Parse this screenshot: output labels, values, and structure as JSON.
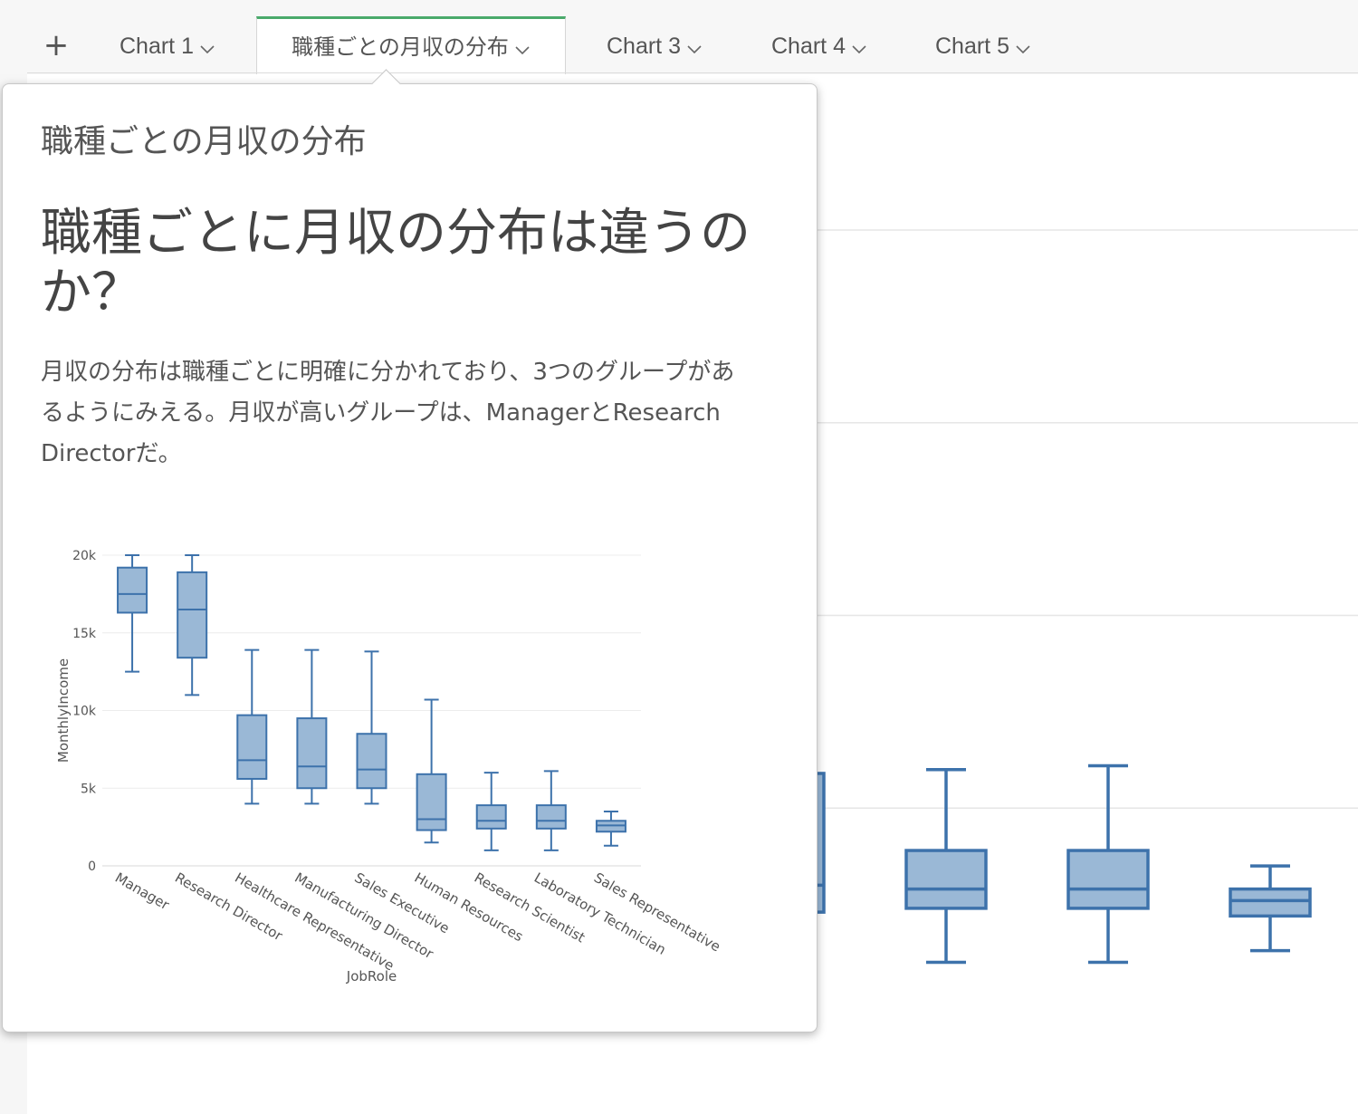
{
  "tabs": [
    {
      "label": "Chart 1",
      "active": false
    },
    {
      "label": "職種ごとの月収の分布",
      "active": true
    },
    {
      "label": "Chart 3",
      "active": false
    },
    {
      "label": "Chart 4",
      "active": false
    },
    {
      "label": "Chart 5",
      "active": false
    }
  ],
  "add_tab_symbol": "+",
  "popover": {
    "title": "職種ごとの月収の分布",
    "heading": "職種ごとに月収の分布は違うのか？",
    "description": "月収の分布は職種ごとに明確に分かれており、3つのグループがあるようにみえる。月収が高いグループは、ManagerとResearch Directorだ。"
  },
  "colors": {
    "accent": "#4aaa6b",
    "box_fill": "#9ab8d6",
    "box_stroke": "#3d72ab"
  },
  "chart_data": {
    "type": "box",
    "title": "",
    "xlabel": "JobRole",
    "ylabel": "MonthlyIncome",
    "ylim": [
      0,
      20000
    ],
    "yticks": [
      0,
      5000,
      10000,
      15000,
      20000
    ],
    "yticklabels": [
      "0",
      "5k",
      "10k",
      "15k",
      "20k"
    ],
    "grid": true,
    "categories": [
      "Manager",
      "Research Director",
      "Healthcare Representative",
      "Manufacturing Director",
      "Sales Executive",
      "Human Resources",
      "Research Scientist",
      "Laboratory Technician",
      "Sales Representative"
    ],
    "boxes": [
      {
        "min": 12500,
        "q1": 16300,
        "median": 17500,
        "q3": 19200,
        "max": 20000
      },
      {
        "min": 11000,
        "q1": 13400,
        "median": 16500,
        "q3": 18900,
        "max": 20000
      },
      {
        "min": 4000,
        "q1": 5600,
        "median": 6800,
        "q3": 9700,
        "max": 13900
      },
      {
        "min": 4000,
        "q1": 5000,
        "median": 6400,
        "q3": 9500,
        "max": 13900
      },
      {
        "min": 4000,
        "q1": 5000,
        "median": 6200,
        "q3": 8500,
        "max": 13800
      },
      {
        "min": 1500,
        "q1": 2300,
        "median": 3000,
        "q3": 5900,
        "max": 10700
      },
      {
        "min": 1000,
        "q1": 2400,
        "median": 2900,
        "q3": 3900,
        "max": 6000
      },
      {
        "min": 1000,
        "q1": 2400,
        "median": 2900,
        "q3": 3900,
        "max": 6100
      },
      {
        "min": 1300,
        "q1": 2200,
        "median": 2600,
        "q3": 2900,
        "max": 3500
      }
    ]
  }
}
